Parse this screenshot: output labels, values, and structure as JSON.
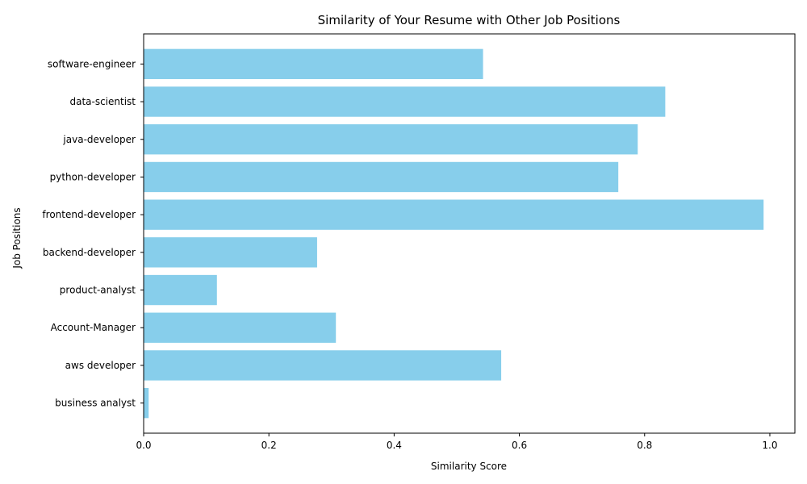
{
  "chart_data": {
    "type": "bar",
    "orientation": "horizontal",
    "title": "Similarity of Your Resume with Other Job Positions",
    "xlabel": "Similarity Score",
    "ylabel": "Job Positions",
    "xlim": [
      0,
      1.04
    ],
    "x_ticks": [
      "0.0",
      "0.2",
      "0.4",
      "0.6",
      "0.8",
      "1.0"
    ],
    "grid": false,
    "bar_color": "#87ceeb",
    "categories": [
      "software-engineer",
      "data-scientist",
      "java-developer",
      "python-developer",
      "frontend-developer",
      "backend-developer",
      "product-analyst",
      "Account-Manager",
      "aws developer",
      "business analyst"
    ],
    "values": [
      0.542,
      0.833,
      0.789,
      0.758,
      0.99,
      0.277,
      0.117,
      0.307,
      0.571,
      0.008
    ]
  }
}
